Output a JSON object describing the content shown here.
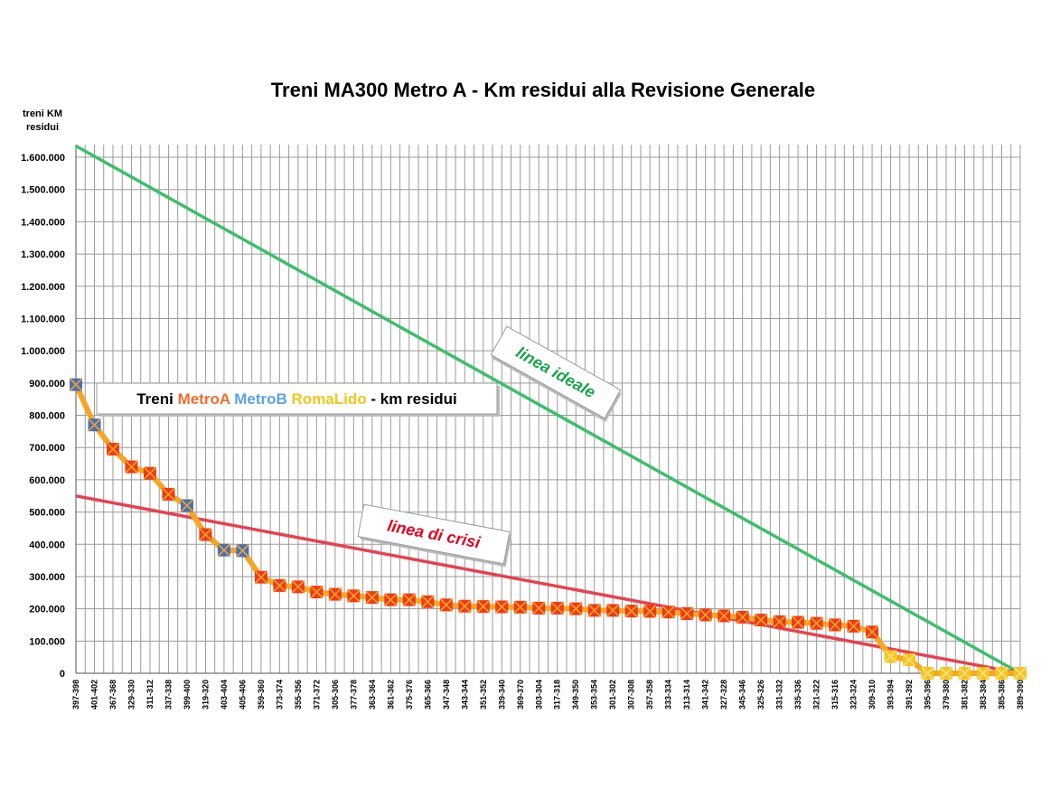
{
  "chart_data": {
    "type": "line",
    "title": "Treni MA300 Metro A - Km residui alla Revisione Generale",
    "ylabel": "treni KM residui",
    "xlabel": "",
    "ylim": [
      0,
      1600000
    ],
    "yticks": [
      "0",
      "100.000",
      "200.000",
      "300.000",
      "400.000",
      "500.000",
      "600.000",
      "700.000",
      "800.000",
      "900.000",
      "1.000.000",
      "1.100.000",
      "1.200.000",
      "1.300.000",
      "1.400.000",
      "1.500.000",
      "1.600.000"
    ],
    "grid": true,
    "categories": [
      "397-398",
      "401-402",
      "367-368",
      "329-330",
      "311-312",
      "337-338",
      "399-400",
      "319-320",
      "403-404",
      "405-406",
      "359-360",
      "373-374",
      "355-356",
      "371-372",
      "305-306",
      "377-378",
      "363-364",
      "361-362",
      "375-376",
      "365-366",
      "347-348",
      "343-344",
      "351-352",
      "339-340",
      "369-370",
      "303-304",
      "317-318",
      "349-350",
      "353-354",
      "301-302",
      "307-308",
      "357-358",
      "333-334",
      "313-314",
      "341-342",
      "327-328",
      "345-346",
      "325-326",
      "331-332",
      "335-336",
      "321-322",
      "315-316",
      "323-324",
      "309-310",
      "393-394",
      "391-392",
      "395-396",
      "379-380",
      "381-382",
      "383-384",
      "385-386",
      "389-390"
    ],
    "series": [
      {
        "values": [
          895000,
          770000,
          695000,
          640000,
          620000,
          555000,
          520000,
          430000,
          382000,
          380000,
          298000,
          272000,
          268000,
          252000,
          245000,
          240000,
          235000,
          228000,
          228000,
          222000,
          212000,
          208000,
          207000,
          206000,
          205000,
          202000,
          202000,
          200000,
          195000,
          195000,
          193000,
          192000,
          190000,
          185000,
          181000,
          178000,
          174000,
          165000,
          160000,
          158000,
          155000,
          150000,
          146000,
          128000,
          52000,
          42000,
          0,
          0,
          0,
          0,
          0,
          0
        ],
        "marker_groups": [
          "MetroB",
          "MetroB",
          "MetroA",
          "MetroA",
          "MetroA",
          "MetroA",
          "MetroB",
          "MetroA",
          "MetroB",
          "MetroB",
          "MetroA",
          "MetroA",
          "MetroA",
          "MetroA",
          "MetroA",
          "MetroA",
          "MetroA",
          "MetroA",
          "MetroA",
          "MetroA",
          "MetroA",
          "MetroA",
          "MetroA",
          "MetroA",
          "MetroA",
          "MetroA",
          "MetroA",
          "MetroA",
          "MetroA",
          "MetroA",
          "MetroA",
          "MetroA",
          "MetroA",
          "MetroA",
          "MetroA",
          "MetroA",
          "MetroA",
          "MetroA",
          "MetroA",
          "MetroA",
          "MetroA",
          "MetroA",
          "MetroA",
          "MetroA",
          "RomaLido",
          "RomaLido",
          "RomaLido",
          "RomaLido",
          "RomaLido",
          "RomaLido",
          "RomaLido",
          "RomaLido"
        ],
        "line_color": "#f5a623"
      }
    ],
    "reference_lines": [
      {
        "label": "linea ideale",
        "from": [
          0,
          1635000
        ],
        "to": [
          51,
          0
        ],
        "color": "#3cbf6a",
        "label_color": "#1aa34a"
      },
      {
        "label": "linea di crisi",
        "from": [
          0,
          550000
        ],
        "to": [
          51,
          0
        ],
        "color": "#e8414e",
        "label_color": "#e3001b"
      }
    ],
    "legend": {
      "position": "top-left",
      "parts": [
        {
          "text": "Treni ",
          "color": "#000000"
        },
        {
          "text": "MetroA",
          "color": "#f26c2b"
        },
        {
          "text": " ",
          "color": "#000000"
        },
        {
          "text": "MetroB",
          "color": "#5aa3e0"
        },
        {
          "text": " ",
          "color": "#000000"
        },
        {
          "text": "RomaLido",
          "color": "#f5c518"
        },
        {
          "text": " - km residui",
          "color": "#000000"
        }
      ]
    },
    "marker_colors": {
      "MetroA": {
        "fill": "#f03a17",
        "cross": "#f5a623"
      },
      "MetroB": {
        "fill": "#4b6fb5",
        "cross": "#f5a623"
      },
      "RomaLido": {
        "fill": "#f5c518",
        "cross": "#f7e08a"
      }
    }
  }
}
